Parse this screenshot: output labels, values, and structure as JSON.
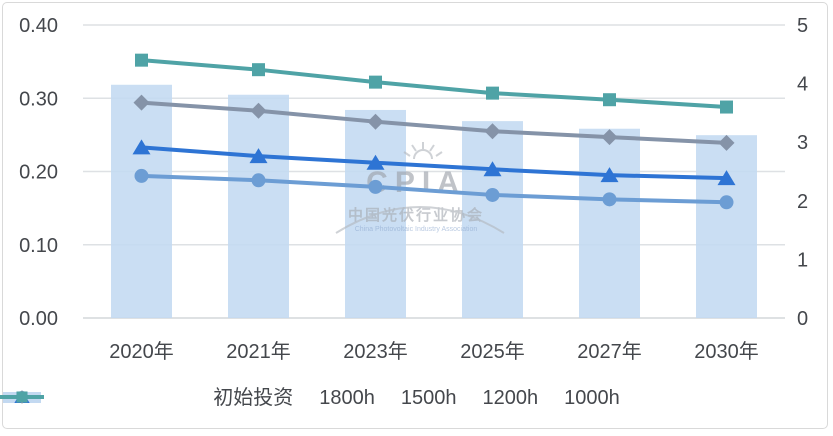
{
  "chart_data": {
    "type": "combo(bar+line)",
    "categories": [
      "2020年",
      "2021年",
      "2023年",
      "2025年",
      "2027年",
      "2030年"
    ],
    "bar_series": {
      "name": "初始投资",
      "axis": "right",
      "values": [
        3.98,
        3.81,
        3.55,
        3.36,
        3.23,
        3.12
      ],
      "color": "#c3d9f1"
    },
    "line_series": [
      {
        "name": "1800h",
        "axis": "left",
        "marker": "circle",
        "values": [
          0.194,
          0.188,
          0.179,
          0.168,
          0.162,
          0.158
        ],
        "color": "#6c9dd4"
      },
      {
        "name": "1500h",
        "axis": "left",
        "marker": "triangle",
        "values": [
          0.233,
          0.221,
          0.212,
          0.203,
          0.195,
          0.191
        ],
        "color": "#2e74d4"
      },
      {
        "name": "1200h",
        "axis": "left",
        "marker": "diamond",
        "values": [
          0.294,
          0.283,
          0.268,
          0.255,
          0.247,
          0.239
        ],
        "color": "#8593a8"
      },
      {
        "name": "1000h",
        "axis": "left",
        "marker": "square",
        "values": [
          0.352,
          0.339,
          0.322,
          0.307,
          0.298,
          0.288
        ],
        "color": "#4fa3a6"
      }
    ],
    "left_axis": {
      "min": 0,
      "max": 0.4,
      "tick_labels": [
        "0.00",
        "0.10",
        "0.20",
        "0.30",
        "0.40"
      ]
    },
    "right_axis": {
      "min": 0,
      "max": 5,
      "tick_labels": [
        "0",
        "1",
        "2",
        "3",
        "4",
        "5"
      ]
    },
    "grid": true,
    "legend_position": "bottom",
    "legend_entries": [
      "初始投资",
      "1800h",
      "1500h",
      "1200h",
      "1000h"
    ]
  },
  "watermark": {
    "logo_text": "CPIA",
    "name_cn": "中国光伏行业协会",
    "name_en": "China Photovoltaic Industry Association"
  },
  "style": {
    "grid_color": "#dee1e4",
    "axis_line_color": "#d4d7da",
    "text_color": "#44474c",
    "panel_border": "#d9d9d9"
  }
}
